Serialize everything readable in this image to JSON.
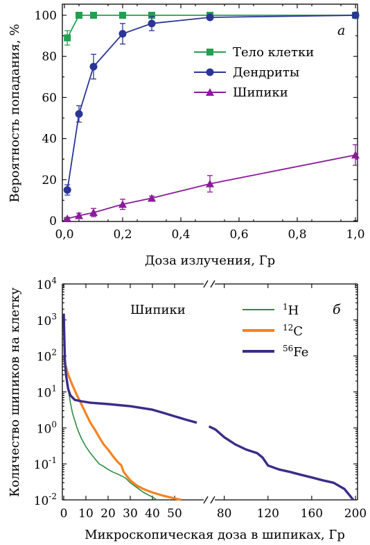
{
  "chart_data": [
    {
      "type": "line",
      "panel_label": "а",
      "xlabel": "Доза излучения, Гр",
      "ylabel": "Вероятность попадания, %",
      "xlim": [
        0,
        1.0
      ],
      "ylim": [
        0,
        100
      ],
      "xticks": [
        "0,0",
        "0,2",
        "0,4",
        "0,6",
        "0,8",
        "1,0"
      ],
      "yticks": [
        "0",
        "20",
        "40",
        "60",
        "80",
        "100"
      ],
      "grid": false,
      "legend": "top-right",
      "series": [
        {
          "name": "Тело клетки",
          "color": "#22a050",
          "marker": "square",
          "x": [
            0.01,
            0.05,
            0.1,
            0.2,
            0.3,
            0.5,
            1.0
          ],
          "y": [
            89,
            100,
            100,
            100,
            100,
            100,
            100
          ],
          "err": [
            3.5,
            0,
            0,
            0,
            0,
            0,
            0.7
          ]
        },
        {
          "name": "Дендриты",
          "color": "#2a3595",
          "marker": "circle",
          "x": [
            0.01,
            0.05,
            0.1,
            0.2,
            0.3,
            0.5,
            1.0
          ],
          "y": [
            15,
            52,
            75,
            91,
            96,
            99,
            100
          ],
          "err": [
            2.5,
            4,
            6,
            5,
            3.5,
            0,
            1
          ]
        },
        {
          "name": "Шипики",
          "color": "#8a1a9a",
          "marker": "triangle",
          "x": [
            0.01,
            0.05,
            0.1,
            0.2,
            0.3,
            0.5,
            1.0
          ],
          "y": [
            1,
            2.5,
            4,
            8,
            11,
            18,
            32
          ],
          "err": [
            0.7,
            1.2,
            2,
            2.5,
            1,
            4,
            5
          ]
        }
      ]
    },
    {
      "type": "line",
      "panel_label": "б",
      "annotation": "Шипики",
      "xlabel": "Микроскопическая доза в шипиках, Гр",
      "ylabel": "Количество шипиков на клетку",
      "xscale": "broken",
      "x_segments": [
        [
          0,
          65
        ],
        [
          65,
          200
        ]
      ],
      "xticks": [
        "0",
        "10",
        "20",
        "30",
        "40",
        "50",
        "80",
        "120",
        "160",
        "200"
      ],
      "yscale": "log",
      "ylim": [
        0.01,
        10000
      ],
      "yticks": [
        "10^-2",
        "10^-1",
        "10^0",
        "10^1",
        "10^2",
        "10^3",
        "10^4"
      ],
      "grid": false,
      "legend": "top-right",
      "series": [
        {
          "name": "1H",
          "label_sup": "1",
          "label_base": "H",
          "color": "#2e8b3e",
          "x": [
            0,
            1,
            2,
            3,
            4,
            5,
            6,
            7,
            8,
            10,
            12,
            14,
            16,
            18,
            20,
            22,
            25,
            28,
            30,
            33,
            36,
            40,
            42
          ],
          "y": [
            100,
            30,
            12,
            5,
            2.5,
            1.6,
            1.0,
            0.7,
            0.5,
            0.3,
            0.2,
            0.14,
            0.1,
            0.085,
            0.07,
            0.06,
            0.05,
            0.04,
            0.03,
            0.022,
            0.016,
            0.012,
            0.01
          ]
        },
        {
          "name": "12C",
          "label_sup": "12",
          "label_base": "C",
          "color": "#f58220",
          "x": [
            0,
            1,
            2,
            4,
            6,
            8,
            10,
            12,
            14,
            16,
            18,
            20,
            22,
            24,
            26,
            27,
            28,
            30,
            33,
            36,
            40,
            45,
            50,
            53
          ],
          "y": [
            80,
            50,
            30,
            15,
            8,
            4.5,
            2.5,
            1.4,
            0.9,
            0.55,
            0.35,
            0.25,
            0.17,
            0.12,
            0.09,
            0.06,
            0.05,
            0.035,
            0.025,
            0.02,
            0.016,
            0.013,
            0.011,
            0.01
          ]
        },
        {
          "name": "56Fe",
          "label_sup": "56",
          "label_base": "Fe",
          "color": "#3b2c8a",
          "x": [
            0,
            0.5,
            1,
            2,
            3,
            5,
            8,
            12,
            20,
            30,
            40,
            45,
            50,
            55,
            60,
            66,
            72,
            80,
            90,
            100,
            110,
            115,
            120,
            130,
            140,
            150,
            160,
            170,
            180,
            190,
            195,
            198
          ],
          "y": [
            1500,
            80,
            30,
            12,
            8,
            6,
            5.5,
            5,
            4.6,
            4,
            3.2,
            2.6,
            2.1,
            1.7,
            1.4,
            1.1,
            0.9,
            0.55,
            0.35,
            0.25,
            0.2,
            0.15,
            0.09,
            0.07,
            0.06,
            0.05,
            0.042,
            0.035,
            0.03,
            0.02,
            0.013,
            0.01
          ]
        }
      ]
    }
  ]
}
